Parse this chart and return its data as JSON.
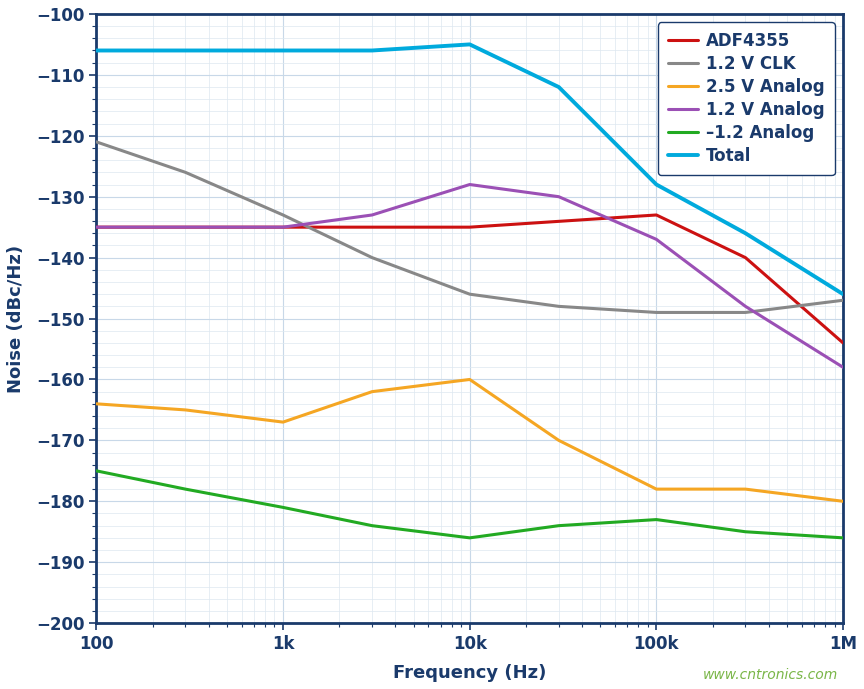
{
  "title": "",
  "xlabel": "Frequency (Hz)",
  "ylabel": "Noise (dBc/Hz)",
  "watermark": "www.cntronics.com",
  "ylim": [
    -200,
    -100
  ],
  "yticks": [
    -200,
    -190,
    -180,
    -170,
    -160,
    -150,
    -140,
    -130,
    -120,
    -110,
    -100
  ],
  "xtick_labels": [
    "100",
    "1k",
    "10k",
    "100k",
    "1M"
  ],
  "xtick_vals": [
    100,
    1000,
    10000,
    100000,
    1000000
  ],
  "series": [
    {
      "label": "ADF4355",
      "color": "#cc1111",
      "lw": 2.2,
      "x": [
        100,
        1000,
        10000,
        100000,
        300000,
        1000000
      ],
      "y": [
        -135,
        -135,
        -135,
        -133,
        -140,
        -154
      ]
    },
    {
      "label": "1.2 V CLK",
      "color": "#888888",
      "lw": 2.2,
      "x": [
        100,
        300,
        1000,
        3000,
        10000,
        30000,
        100000,
        300000,
        1000000
      ],
      "y": [
        -121,
        -126,
        -133,
        -140,
        -146,
        -148,
        -149,
        -149,
        -147
      ]
    },
    {
      "label": "2.5 V Analog",
      "color": "#f5a623",
      "lw": 2.2,
      "x": [
        100,
        300,
        1000,
        3000,
        10000,
        30000,
        100000,
        300000,
        1000000
      ],
      "y": [
        -164,
        -165,
        -167,
        -162,
        -160,
        -170,
        -178,
        -178,
        -180
      ]
    },
    {
      "label": "1.2 V Analog",
      "color": "#9b50b5",
      "lw": 2.2,
      "x": [
        100,
        300,
        1000,
        3000,
        10000,
        30000,
        100000,
        300000,
        1000000
      ],
      "y": [
        -135,
        -135,
        -135,
        -133,
        -128,
        -130,
        -137,
        -148,
        -158
      ]
    },
    {
      "label": "–1.2 Analog",
      "color": "#22aa22",
      "lw": 2.2,
      "x": [
        100,
        300,
        1000,
        3000,
        10000,
        30000,
        100000,
        300000,
        1000000
      ],
      "y": [
        -175,
        -178,
        -181,
        -184,
        -186,
        -184,
        -183,
        -185,
        -186
      ]
    },
    {
      "label": "Total",
      "color": "#00aadd",
      "lw": 2.8,
      "x": [
        100,
        300,
        1000,
        3000,
        10000,
        30000,
        100000,
        300000,
        1000000
      ],
      "y": [
        -106,
        -106,
        -106,
        -106,
        -105,
        -112,
        -128,
        -136,
        -146
      ]
    }
  ],
  "plot_bg_color": "#ffffff",
  "fig_bg_color": "#ffffff",
  "major_grid_color": "#c8d8e8",
  "minor_grid_color": "#dde8f0",
  "border_color": "#1a3a6b",
  "label_color": "#1a3a6b",
  "legend_text_color": "#1a3a6b",
  "watermark_color": "#7ab648",
  "axis_label_fontsize": 13,
  "tick_fontsize": 12,
  "legend_fontsize": 12
}
